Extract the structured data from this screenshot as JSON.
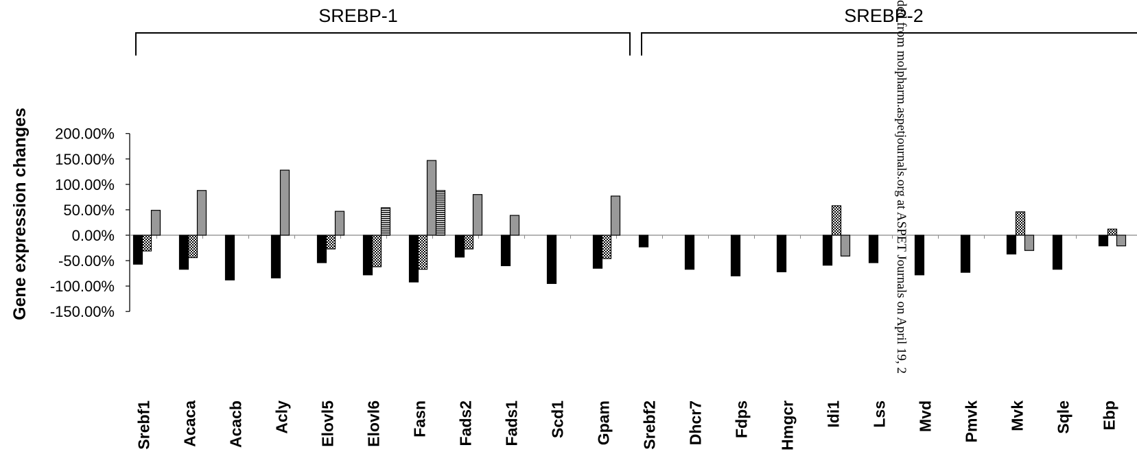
{
  "chart_data": {
    "type": "bar",
    "ylabel": "Gene expression changes",
    "ylim": [
      -150,
      200
    ],
    "yticks": [
      -150,
      -100,
      -50,
      0,
      50,
      100,
      150,
      200
    ],
    "ytick_labels": [
      "-150.00%",
      "-100.00%",
      "-50.00%",
      "0.00%",
      "50.00%",
      "100.00%",
      "150.00%",
      "200.00%"
    ],
    "value_unit": "%",
    "grid": false,
    "legend": "none",
    "groups": [
      {
        "label": "SREBP-1",
        "categories": [
          "Srebf1",
          "Acaca",
          "Acacb",
          "Acly",
          "Elovl5",
          "Elovl6",
          "Fasn",
          "Fads2",
          "Fads1",
          "Scd1",
          "Gpam"
        ]
      },
      {
        "label": "SREBP-2",
        "categories": [
          "Srebf2",
          "Dhcr7",
          "Fdps",
          "Hmgcr",
          "Idi1",
          "Lss",
          "Mvd",
          "Pmvk",
          "Mvk",
          "Sqle",
          "Ebp"
        ]
      }
    ],
    "categories": [
      "Srebf1",
      "Acaca",
      "Acacb",
      "Acly",
      "Elovl5",
      "Elovl6",
      "Fasn",
      "Fads2",
      "Fads1",
      "Scd1",
      "Gpam",
      "Srebf2",
      "Dhcr7",
      "Fdps",
      "Hmgcr",
      "Idi1",
      "Lss",
      "Mvd",
      "Pmvk",
      "Mvk",
      "Sqle",
      "Ebp"
    ],
    "series": [
      {
        "fill": "solid-black",
        "values": [
          -57,
          -67,
          -88,
          -84,
          -54,
          -78,
          -92,
          -43,
          -60,
          -95,
          -65,
          -23,
          -67,
          -80,
          -72,
          -59,
          -54,
          -78,
          -73,
          -37,
          -67,
          -21
        ]
      },
      {
        "fill": "checkered",
        "values": [
          -31,
          -44,
          null,
          null,
          -27,
          -62,
          -67,
          -27,
          null,
          null,
          -46,
          null,
          null,
          null,
          null,
          58,
          null,
          null,
          null,
          46,
          null,
          12
        ]
      },
      {
        "fill": "gray",
        "values": [
          49,
          88,
          null,
          128,
          47,
          null,
          147,
          80,
          39,
          null,
          77,
          null,
          null,
          null,
          null,
          -41,
          null,
          null,
          null,
          -30,
          null,
          -21
        ]
      },
      {
        "fill": "horizontal-stripes",
        "values": [
          null,
          null,
          null,
          null,
          null,
          54,
          88,
          null,
          null,
          null,
          null,
          null,
          null,
          null,
          null,
          null,
          null,
          null,
          null,
          null,
          null,
          null
        ]
      }
    ],
    "colors": {
      "series1": "#000000",
      "series3": "#999999",
      "axis": "#000000",
      "background": "#ffffff"
    }
  },
  "watermark": "ded from molpharm.aspetjournals.org at ASPET Journals on April 19, 2"
}
